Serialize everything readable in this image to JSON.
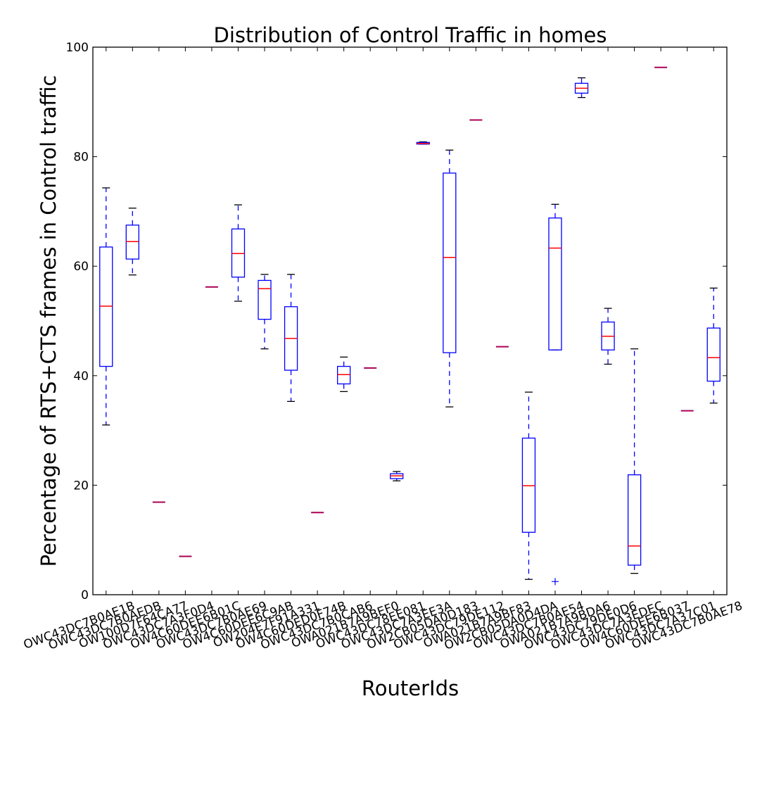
{
  "chart_data": {
    "type": "box",
    "title": "Distribution of Control Traffic in homes",
    "xlabel": "RouterIds",
    "ylabel": "Percentage of RTS+CTS frames in Control traffic",
    "ylim": [
      0,
      100
    ],
    "yticks": [
      0,
      20,
      40,
      60,
      80,
      100
    ],
    "grid": false,
    "colors": {
      "box": "#0000ff",
      "median": "#ff0000",
      "whisker": "#0000ff",
      "cap": "#000000",
      "flier": "#0000ff",
      "single": "#aa0055"
    },
    "boxes": [
      {
        "label": "OWC43DC7B0AE1B",
        "whislo": 31.0,
        "q1": 41.7,
        "med": 52.7,
        "q3": 63.5,
        "whishi": 74.3
      },
      {
        "label": "OWC43DC7B0AEDB",
        "whislo": 58.4,
        "q1": 61.3,
        "med": 64.5,
        "q3": 67.5,
        "whishi": 70.6
      },
      {
        "label": "OW100D7F64CA77",
        "whislo": 16.9,
        "q1": 16.9,
        "med": 16.9,
        "q3": 16.9,
        "whishi": 16.9
      },
      {
        "label": "OWC43DC7A3F0D4",
        "whislo": 7.0,
        "q1": 7.0,
        "med": 7.0,
        "q3": 7.0,
        "whishi": 7.0
      },
      {
        "label": "OW4C60DEE6B01C",
        "whislo": 56.2,
        "q1": 56.2,
        "med": 56.2,
        "q3": 56.2,
        "whishi": 56.2
      },
      {
        "label": "OWC43DC7B0AE69",
        "whislo": 53.6,
        "q1": 58.0,
        "med": 62.3,
        "q3": 66.8,
        "whishi": 71.2
      },
      {
        "label": "OW4C60DEE6C9AB",
        "whislo": 44.9,
        "q1": 50.3,
        "med": 55.9,
        "q3": 57.4,
        "whishi": 58.5
      },
      {
        "label": "OW204E7F91A331",
        "whislo": 35.3,
        "q1": 41.0,
        "med": 46.8,
        "q3": 52.6,
        "whishi": 58.5
      },
      {
        "label": "OW4C60DED0F74B",
        "whislo": 15.0,
        "q1": 15.0,
        "med": 15.0,
        "q3": 15.0,
        "whishi": 15.0
      },
      {
        "label": "OWC43DC7B0CAB6",
        "whislo": 37.1,
        "q1": 38.5,
        "med": 40.2,
        "q3": 41.7,
        "whishi": 43.4
      },
      {
        "label": "OWA021B7A9BEF0",
        "whislo": 41.4,
        "q1": 41.4,
        "med": 41.4,
        "q3": 41.4,
        "whishi": 41.4
      },
      {
        "label": "OWC43DC78EE081",
        "whislo": 20.8,
        "q1": 21.2,
        "med": 21.7,
        "q3": 22.1,
        "whishi": 22.5
      },
      {
        "label": "OWC43DC7A3EE3A",
        "whislo": 82.3,
        "q1": 82.3,
        "med": 82.4,
        "q3": 82.6,
        "whishi": 82.7
      },
      {
        "label": "OW2CB05DA0D183",
        "whislo": 34.3,
        "q1": 44.2,
        "med": 61.6,
        "q3": 77.0,
        "whishi": 81.2
      },
      {
        "label": "OWC43DC79DE112",
        "whislo": 86.7,
        "q1": 86.7,
        "med": 86.7,
        "q3": 86.7,
        "whishi": 86.7
      },
      {
        "label": "OWA021B7A9BF83",
        "whislo": 45.3,
        "q1": 45.3,
        "med": 45.3,
        "q3": 45.3,
        "whishi": 45.3
      },
      {
        "label": "OW2CB05DA0D4DA",
        "whislo": 2.8,
        "q1": 11.4,
        "med": 19.9,
        "q3": 28.6,
        "whishi": 37.0
      },
      {
        "label": "OWC43DC7B0AE54",
        "whislo": 44.7,
        "q1": 44.7,
        "med": 63.3,
        "q3": 68.8,
        "whishi": 71.3,
        "fliers": [
          2.4
        ]
      },
      {
        "label": "OWA021B7A9BDA6",
        "whislo": 90.8,
        "q1": 91.6,
        "med": 92.5,
        "q3": 93.4,
        "whishi": 94.4
      },
      {
        "label": "OWC43DC79DE0D6",
        "whislo": 42.1,
        "q1": 44.7,
        "med": 47.2,
        "q3": 49.8,
        "whishi": 52.3
      },
      {
        "label": "OWC43DC7A3EDEC",
        "whislo": 3.9,
        "q1": 5.4,
        "med": 8.9,
        "q3": 21.9,
        "whishi": 44.9
      },
      {
        "label": "OW4C60DEE6B037",
        "whislo": 96.3,
        "q1": 96.3,
        "med": 96.3,
        "q3": 96.3,
        "whishi": 96.3
      },
      {
        "label": "OWC43DC7A37C01",
        "whislo": 33.6,
        "q1": 33.6,
        "med": 33.6,
        "q3": 33.6,
        "whishi": 33.6
      },
      {
        "label": "OWC43DC7B0AE78",
        "whislo": 35.0,
        "q1": 39.0,
        "med": 43.3,
        "q3": 48.7,
        "whishi": 56.0
      }
    ]
  }
}
